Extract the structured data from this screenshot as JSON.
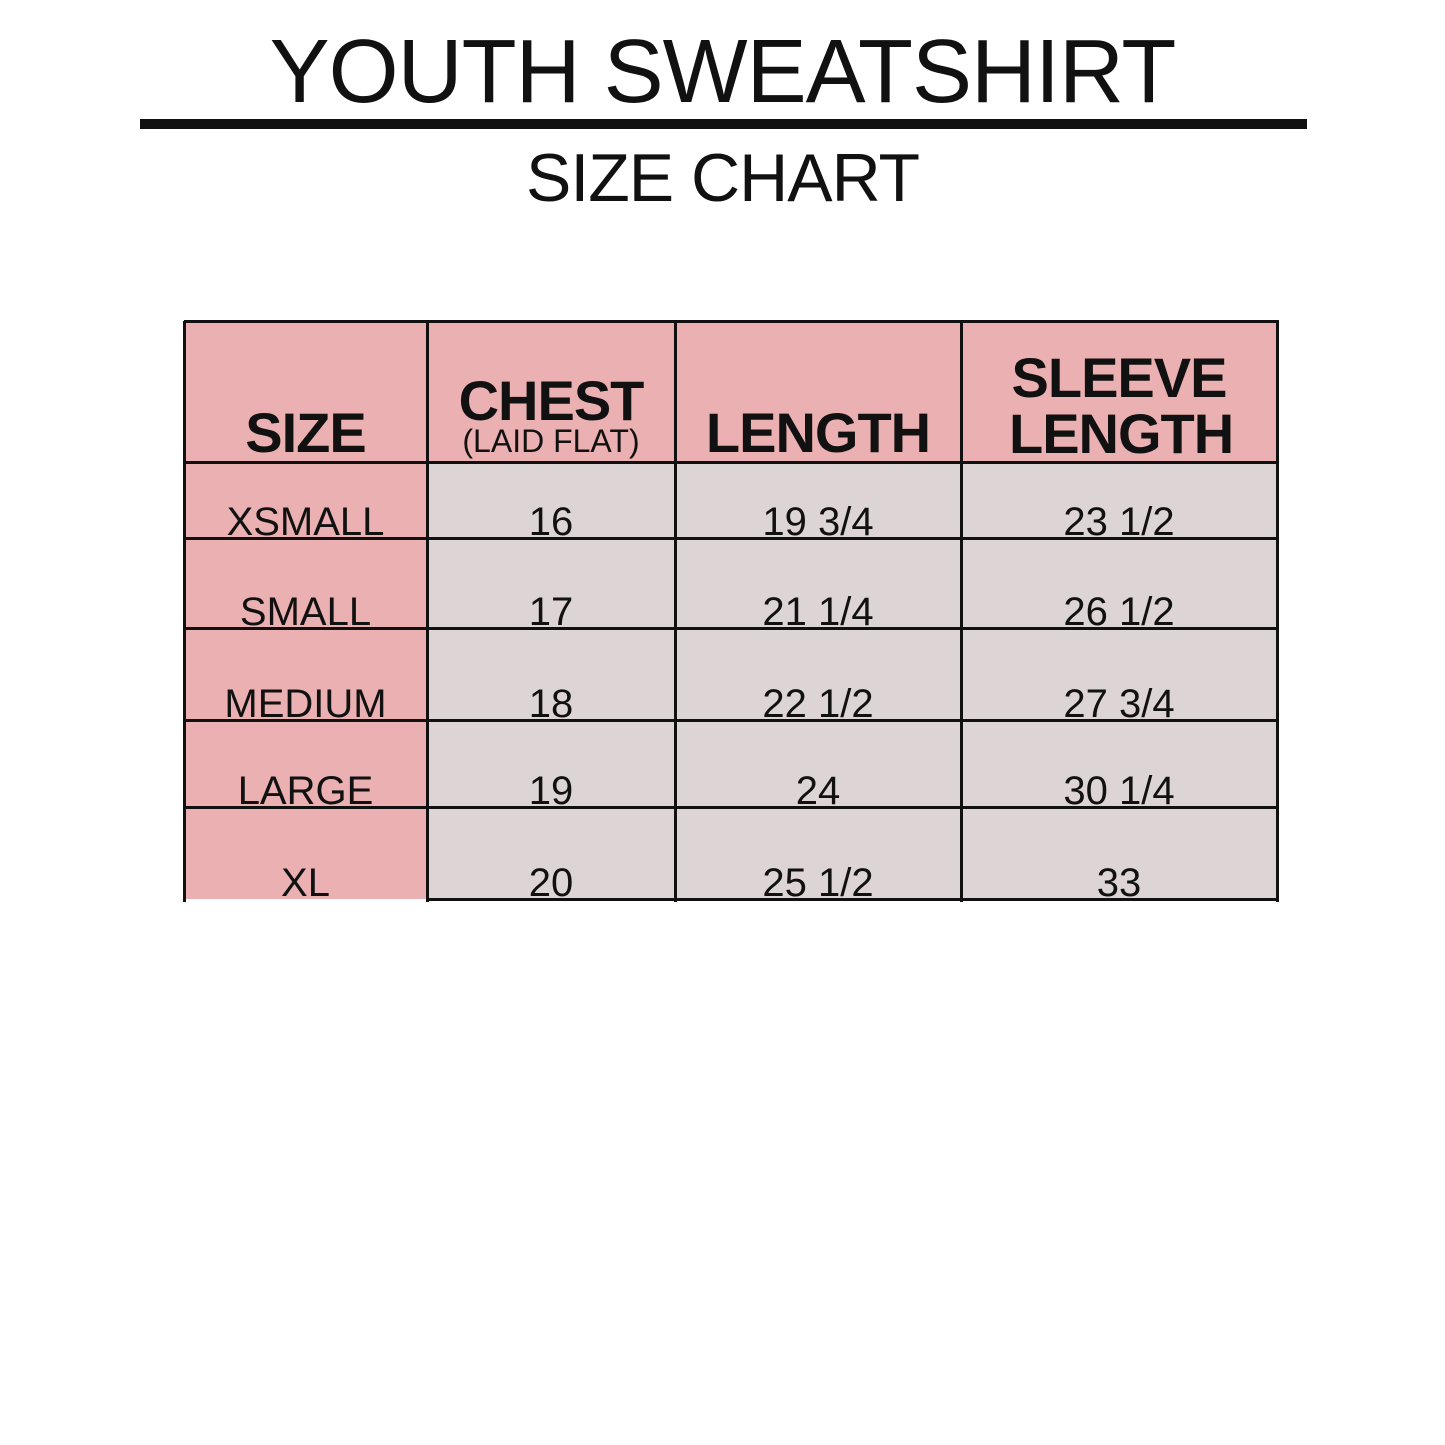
{
  "title": "YOUTH SWEATSHIRT",
  "subtitle": "SIZE CHART",
  "colors": {
    "header_bg": "#ebb0b1",
    "size_col_bg": "#ebb0b1",
    "value_bg": "#ddd4d5",
    "border": "#111111"
  },
  "table": {
    "headers": [
      {
        "label": "SIZE",
        "sub": ""
      },
      {
        "label": "CHEST",
        "sub": "(LAID FLAT)"
      },
      {
        "label": "LENGTH",
        "sub": ""
      },
      {
        "label": "SLEEVE LENGTH",
        "sub": ""
      }
    ],
    "rows": [
      [
        "XSMALL",
        "16",
        "19 3/4",
        "23 1/2"
      ],
      [
        "SMALL",
        "17",
        "21 1/4",
        "26 1/2"
      ],
      [
        "MEDIUM",
        "18",
        "22 1/2",
        "27 3/4"
      ],
      [
        "LARGE",
        "19",
        "24",
        "30 1/4"
      ],
      [
        "XL",
        "20",
        "25 1/2",
        "33"
      ]
    ]
  }
}
